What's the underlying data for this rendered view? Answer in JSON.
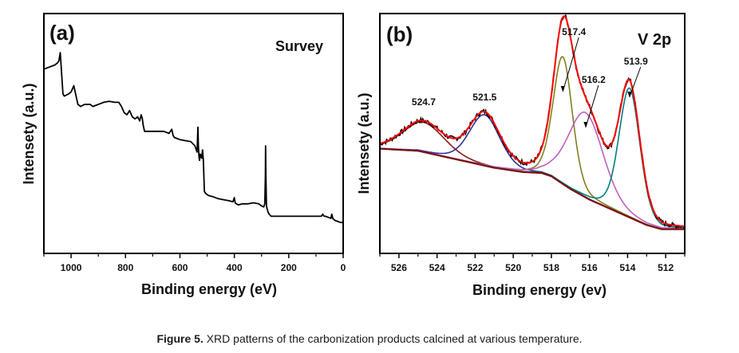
{
  "figure": {
    "caption_label": "Figure 5.",
    "caption_text": " XRD patterns of the carbonization products calcined at various temperature."
  },
  "chart_data": [
    {
      "type": "line",
      "panel_label": "(a)",
      "annotation": "Survey",
      "xlabel": "Binding energy (eV)",
      "ylabel": "Intensety (a.u.)",
      "xlim": [
        1100,
        0
      ],
      "x_reversed": true,
      "ylim": [
        0,
        100
      ],
      "y_ticks_shown": false,
      "x_ticks": [
        1000,
        800,
        600,
        400,
        200,
        0
      ],
      "x_tick_labels": [
        "1000",
        "800",
        "600",
        "400",
        "200",
        "0"
      ],
      "grid": false,
      "series": [
        {
          "name": "Survey spectrum",
          "color": "#000000",
          "x": [
            1100,
            1080,
            1060,
            1050,
            1045,
            1040,
            1030,
            1025,
            1010,
            1000,
            990,
            985,
            975,
            965,
            950,
            930,
            920,
            900,
            880,
            860,
            840,
            825,
            815,
            805,
            795,
            785,
            775,
            765,
            755,
            748,
            742,
            738,
            735,
            730,
            720,
            700,
            680,
            660,
            640,
            630,
            625,
            620,
            610,
            600,
            580,
            560,
            545,
            537,
            534,
            532,
            530,
            528,
            525,
            520,
            517,
            514,
            512,
            510,
            505,
            495,
            480,
            460,
            440,
            420,
            405,
            400,
            397,
            393,
            385,
            370,
            350,
            330,
            310,
            300,
            292,
            288,
            286,
            285,
            284,
            282,
            280,
            278,
            276,
            272,
            265,
            250,
            200,
            150,
            100,
            80,
            75,
            70,
            65,
            55,
            45,
            42,
            38,
            35,
            30,
            20,
            10,
            0
          ],
          "y": [
            82,
            83,
            84,
            85,
            86,
            90,
            70,
            69,
            70,
            71,
            74,
            71,
            65,
            64,
            65,
            65,
            64,
            65,
            66,
            66.5,
            66,
            66,
            64,
            61,
            60,
            62,
            59,
            58,
            59,
            57,
            60,
            58,
            55,
            52,
            52,
            52,
            52,
            52,
            51,
            53,
            50,
            49,
            48.5,
            48,
            47.5,
            47,
            45,
            42,
            54,
            45,
            40,
            38,
            41,
            39,
            43,
            38,
            30,
            23,
            22,
            21,
            20.5,
            19.5,
            19,
            18.5,
            18,
            20,
            17.5,
            17,
            16.5,
            17,
            17,
            17.5,
            17,
            16,
            15.5,
            17,
            30,
            45,
            30,
            16,
            15,
            14,
            13,
            12,
            11,
            11,
            11,
            11,
            11,
            11,
            12,
            11,
            11,
            10.5,
            10,
            12,
            10,
            9.5,
            9,
            8.5,
            8,
            8
          ]
        }
      ]
    },
    {
      "type": "line",
      "panel_label": "(b)",
      "annotation": "V 2p",
      "xlabel": "Binding energy (ev)",
      "ylabel": "Intensety (a.u.)",
      "xlim": [
        527,
        511
      ],
      "x_reversed": true,
      "ylim": [
        0,
        100
      ],
      "y_ticks_shown": false,
      "x_ticks": [
        526,
        524,
        522,
        520,
        518,
        516,
        514,
        512
      ],
      "x_tick_labels": [
        "526",
        "524",
        "522",
        "520",
        "518",
        "516",
        "514",
        "512"
      ],
      "grid": false,
      "peak_labels": [
        {
          "text": "524.7",
          "x": 524.7
        },
        {
          "text": "521.5",
          "x": 521.5
        },
        {
          "text": "517.4",
          "x": 517.4
        },
        {
          "text": "516.2",
          "x": 516.2
        },
        {
          "text": "513.9",
          "x": 513.9
        }
      ],
      "background": {
        "name": "Shirley background",
        "x": [
          527,
          525,
          523,
          521,
          519.5,
          518.5,
          518,
          517,
          516,
          515,
          514,
          513,
          512.2,
          511.5,
          511
        ],
        "y": [
          43,
          42,
          38,
          34,
          32,
          31.5,
          30,
          24,
          19,
          15,
          11,
          7,
          5,
          5,
          5
        ]
      },
      "components": [
        {
          "name": "524.7 component",
          "color": "#8b1a1a",
          "center": 524.7,
          "height": 14,
          "fwhm": 2.6
        },
        {
          "name": "521.5 component",
          "color": "#2e3192",
          "center": 521.5,
          "height": 24,
          "fwhm": 1.9
        },
        {
          "name": "517.4 component",
          "color": "#808020",
          "center": 517.4,
          "height": 60,
          "fwhm": 1.2
        },
        {
          "name": "516.2 component",
          "color": "#c060c0",
          "center": 516.2,
          "height": 40,
          "fwhm": 2.2
        },
        {
          "name": "513.9 component",
          "color": "#008080",
          "center": 513.9,
          "height": 61,
          "fwhm": 1.3
        }
      ],
      "series": [
        {
          "name": "Experimental data",
          "color": "#000000"
        },
        {
          "name": "Fitted envelope",
          "color": "#ff0000"
        }
      ]
    }
  ]
}
